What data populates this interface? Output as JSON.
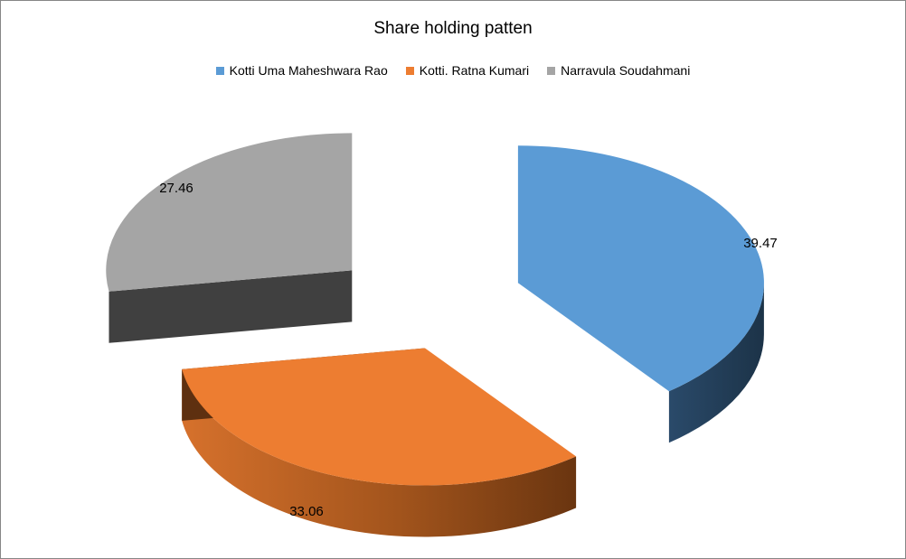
{
  "chart_data": {
    "type": "pie",
    "title": "Share holding patten",
    "legend_position": "top",
    "series": [
      {
        "name": "",
        "categories": [
          "Kotti Uma Maheshwara Rao",
          "Kotti. Ratna Kumari",
          "Narravula Soudahmani"
        ],
        "values": [
          39.47,
          33.06,
          27.46
        ],
        "data_labels": [
          "39.47",
          "33.06",
          "27.46"
        ]
      }
    ],
    "colors": [
      "#5B9BD5",
      "#ED7D31",
      "#A5A5A5"
    ],
    "side_colors": [
      "#243F5A",
      "#8A4512",
      "#404040"
    ],
    "style": "3d-exploded"
  }
}
